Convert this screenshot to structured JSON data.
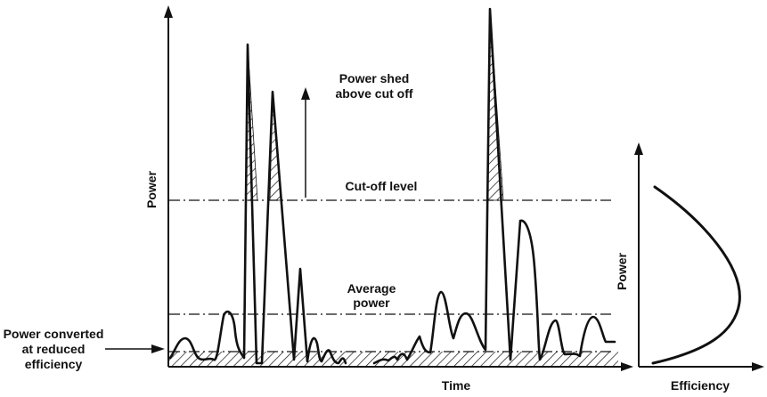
{
  "main_plot": {
    "y_axis_label": "Power",
    "x_axis_label": "Time"
  },
  "annotations": {
    "shed": [
      "Power shed",
      "above cut off"
    ],
    "cutoff": "Cut-off level",
    "average": [
      "Average",
      "power"
    ],
    "reduced": [
      "Power converted",
      "at reduced",
      "efficiency"
    ]
  },
  "efficiency_plot": {
    "y_axis_label": "Power",
    "x_axis_label": "Efficiency"
  }
}
